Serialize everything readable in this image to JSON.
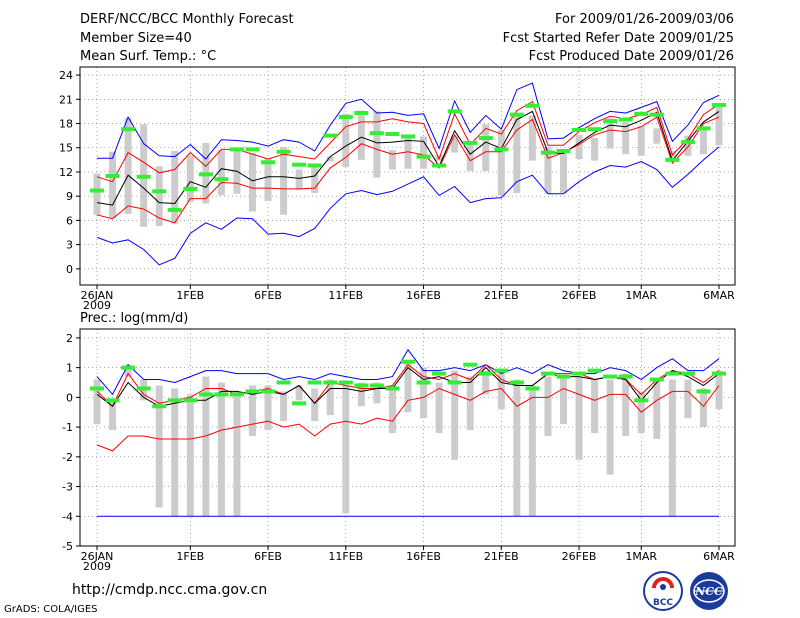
{
  "header": {
    "title": "DERF/NCC/BCC Monthly Forecast",
    "member_size": "Member Size=40",
    "variable1": "Mean Surf. Temp.: °C",
    "period": "For 2009/01/26-2009/03/06",
    "fcst_started": "Fcst Started Refer Date 2009/01/25",
    "fcst_produced": "Fcst Produced Date 2009/01/26",
    "variable2": "Prec.: log(mm/d)"
  },
  "footer": {
    "url": "http://cmdp.ncc.cma.gov.cn",
    "grads_label": "GrADS: COLA/IGES",
    "logo_left_text": "BCC",
    "logo_right_text": "NCC"
  },
  "colors": {
    "max_min_line": "#0000ff",
    "spread_line": "#ff0000",
    "mean_line": "#000000",
    "observation_bar": "#cccccc",
    "observation_mark": "#33ee33"
  },
  "chart_data": [
    {
      "type": "line",
      "title": "Mean Surf. Temp.: °C",
      "xlabel": "",
      "ylabel": "",
      "ylim": [
        -2,
        25
      ],
      "yticks": [
        0,
        3,
        6,
        9,
        12,
        15,
        18,
        21,
        24
      ],
      "grid": true,
      "x_days": 40,
      "xtick_days": [
        0,
        6,
        11,
        16,
        21,
        26,
        31,
        35,
        40
      ],
      "xtick_labels": [
        "26JAN",
        "1FEB",
        "6FEB",
        "11FEB",
        "16FEB",
        "21FEB",
        "26FEB",
        "1MAR",
        "6MAR"
      ],
      "xtick_year": "2009",
      "series": [
        {
          "name": "max",
          "color": "#0000ff",
          "values": [
            13.7,
            13.7,
            18.8,
            15.5,
            14,
            13.9,
            15.4,
            13.6,
            16,
            15.9,
            15.7,
            15.2,
            16,
            15.7,
            14.6,
            17.8,
            20.5,
            21,
            19.3,
            19.4,
            19,
            19.2,
            14.9,
            20.8,
            16.9,
            19,
            17.3,
            22.2,
            23,
            16.1,
            16.2,
            17.5,
            18.6,
            19.5,
            19.3,
            20,
            20.7,
            15.8,
            17.8,
            20.6,
            21.5
          ]
        },
        {
          "name": "upper",
          "color": "#ff0000",
          "values": [
            11.4,
            10.8,
            14.4,
            13.2,
            11.9,
            12.3,
            14.4,
            12.7,
            14.8,
            14.8,
            14.2,
            13.6,
            14.2,
            13.9,
            13.6,
            15.6,
            17.6,
            18.2,
            18.2,
            18.6,
            18.2,
            18,
            13.6,
            19.2,
            15.4,
            17.4,
            16.7,
            19.6,
            20.7,
            15.3,
            15.3,
            17,
            18.1,
            18.9,
            18.6,
            19.1,
            20,
            14.1,
            16.1,
            19.1,
            20.4
          ]
        },
        {
          "name": "mean",
          "color": "#000000",
          "values": [
            8.2,
            7.9,
            11.6,
            10,
            8.2,
            8.1,
            10.8,
            10.1,
            12.4,
            12.1,
            10.9,
            11.4,
            11.4,
            11.2,
            11.5,
            13.9,
            15.2,
            16.3,
            15.6,
            15.7,
            15.9,
            15.8,
            12.7,
            17.1,
            14.2,
            15.7,
            14.9,
            18.5,
            19.5,
            14.4,
            14.3,
            15.6,
            16.9,
            17.8,
            17.6,
            18.4,
            19.4,
            13.4,
            15.8,
            18.2,
            19.5
          ]
        },
        {
          "name": "lower",
          "color": "#ff0000",
          "values": [
            6.7,
            6.2,
            7.8,
            7.4,
            6.3,
            5.7,
            8.7,
            8.7,
            10.7,
            10.6,
            10,
            10,
            9.9,
            9.9,
            10,
            12.5,
            13.8,
            15.5,
            14.8,
            14.2,
            14.5,
            14.1,
            12.5,
            16.6,
            13.4,
            14.5,
            14.5,
            17.2,
            18.5,
            13.7,
            14.4,
            15.4,
            16.6,
            17.2,
            17,
            17.6,
            18.8,
            13.1,
            15.1,
            18,
            18.8
          ]
        },
        {
          "name": "min",
          "color": "#0000ff",
          "values": [
            3.9,
            3.2,
            3.6,
            2.4,
            0.5,
            1.3,
            4.4,
            5.7,
            4.9,
            6.3,
            6.2,
            4.3,
            4.4,
            4,
            5,
            7.5,
            9.3,
            9.7,
            9.2,
            9.6,
            10.5,
            11.4,
            9.1,
            10.2,
            8.2,
            8.7,
            8.8,
            10.8,
            11.6,
            9.3,
            9.3,
            10.8,
            12,
            12.8,
            12.6,
            13.3,
            12.3,
            10.1,
            11.7,
            13.5,
            15.1
          ]
        },
        {
          "name": "obs_bar_top",
          "color": "#cccccc",
          "values": [
            11.8,
            14.5,
            18.7,
            17.9,
            12.7,
            14.6,
            14,
            15.6,
            14.7,
            14.8,
            14.4,
            13.7,
            15.1,
            12.3,
            12.7,
            13.9,
            19.2,
            19.6,
            19.5,
            14.7,
            16.3,
            16.4,
            14.1,
            16.4,
            15.5,
            17.9,
            17.2,
            19.3,
            19,
            15.1,
            14.5,
            16.6,
            16.2,
            18.6,
            18.2,
            17.7,
            17.4,
            14.6,
            16.5,
            17.5,
            20.2
          ]
        },
        {
          "name": "obs_bar_bottom",
          "color": "#cccccc",
          "values": [
            6.7,
            6.3,
            6.8,
            5.2,
            5.3,
            5.6,
            8.3,
            8.1,
            9.1,
            9.3,
            7.1,
            8.4,
            6.7,
            9.8,
            9.4,
            13.3,
            12.6,
            13.5,
            11.3,
            12.3,
            12.4,
            12.4,
            13.4,
            14.4,
            12.1,
            12.1,
            9.1,
            9.4,
            13.4,
            9.3,
            9.4,
            13.6,
            13.4,
            14.9,
            14.2,
            14,
            15.5,
            13.6,
            14,
            14.2,
            15.3
          ]
        },
        {
          "name": "observed",
          "color": "#33ee33",
          "values": [
            9.7,
            11.5,
            17.3,
            11.4,
            9.6,
            7.3,
            9.9,
            11.7,
            11.1,
            14.8,
            14.8,
            13.2,
            14.5,
            12.9,
            12.8,
            16.5,
            18.8,
            19.3,
            16.8,
            16.7,
            16.4,
            13.9,
            12.8,
            19.5,
            15.6,
            16.2,
            14.8,
            19.1,
            20.2,
            14.4,
            14.6,
            17.2,
            17.3,
            18.3,
            18.5,
            19.2,
            19.1,
            13.5,
            15.7,
            17.4,
            20.3
          ]
        }
      ]
    },
    {
      "type": "line",
      "title": "Prec.: log(mm/d)",
      "xlabel": "",
      "ylabel": "",
      "ylim": [
        -5,
        2.3
      ],
      "yticks": [
        -5,
        -4,
        -3,
        -2,
        -1,
        0,
        1,
        2
      ],
      "grid": true,
      "x_days": 40,
      "xtick_days": [
        0,
        6,
        11,
        16,
        21,
        26,
        31,
        35,
        40
      ],
      "xtick_labels": [
        "26JAN",
        "1FEB",
        "6FEB",
        "11FEB",
        "16FEB",
        "21FEB",
        "26FEB",
        "1MAR",
        "6MAR"
      ],
      "xtick_year": "2009",
      "series": [
        {
          "name": "max",
          "color": "#0000ff",
          "values": [
            0.7,
            0.1,
            1.1,
            0.6,
            0.6,
            0.5,
            0.7,
            0.9,
            0.9,
            0.8,
            0.8,
            0.8,
            0.6,
            0.7,
            0.6,
            0.8,
            0.7,
            0.6,
            0.6,
            0.7,
            1.6,
            0.9,
            0.9,
            1,
            0.9,
            1.1,
            0.8,
            1,
            0.8,
            1.1,
            0.9,
            0.8,
            0.8,
            1,
            0.9,
            0.6,
            1,
            1.3,
            0.9,
            0.9,
            1.3
          ]
        },
        {
          "name": "upper",
          "color": "#ff0000",
          "values": [
            0.2,
            -0.3,
            0.8,
            0.1,
            -0.2,
            -0.1,
            0,
            0.3,
            0.3,
            0.1,
            0.2,
            0.3,
            0.1,
            0.4,
            -0.2,
            0.5,
            0.4,
            0.3,
            0.3,
            0.4,
            1.1,
            0.7,
            0.6,
            0.8,
            0.6,
            1.1,
            0.6,
            0.4,
            0.4,
            0.8,
            0.8,
            0.8,
            0.6,
            0.7,
            0.6,
            0.1,
            0.6,
            0.9,
            0.8,
            0.5,
            0.9
          ]
        },
        {
          "name": "mean",
          "color": "#000000",
          "values": [
            0.1,
            -0.3,
            0.5,
            0,
            -0.3,
            -0.2,
            -0.1,
            -0.1,
            0.2,
            0.2,
            0.1,
            0.2,
            0.1,
            0.4,
            -0.2,
            0.3,
            0.3,
            0.2,
            0.3,
            0.3,
            1,
            0.6,
            0.7,
            0.5,
            0.5,
            1,
            0.5,
            0.4,
            0.4,
            0.8,
            0.7,
            0.7,
            0.6,
            0.7,
            0.6,
            -0.1,
            0.5,
            0.9,
            0.7,
            0.4,
            0.8
          ]
        },
        {
          "name": "lower",
          "color": "#ff0000",
          "values": [
            -1.6,
            -1.8,
            -1.3,
            -1.3,
            -1.4,
            -1.4,
            -1.4,
            -1.3,
            -1.1,
            -1,
            -0.9,
            -0.8,
            -1,
            -0.9,
            -1.3,
            -0.9,
            -0.8,
            -0.9,
            -0.7,
            -0.8,
            -0.1,
            0,
            0.3,
            0.1,
            -0.1,
            0.2,
            0.3,
            -0.3,
            0,
            0,
            0.3,
            0.1,
            -0.1,
            0.1,
            0.1,
            -0.5,
            -0.1,
            0.2,
            0.2,
            -0.3,
            0.4
          ]
        },
        {
          "name": "min",
          "color": "#0000ff",
          "values": [
            -4,
            -4,
            -4,
            -4,
            -4,
            -4,
            -4,
            -4,
            -4,
            -4,
            -4,
            -4,
            -4,
            -4,
            -4,
            -4,
            -4,
            -4,
            -4,
            -4,
            -4,
            -4,
            -4,
            -4,
            -4,
            -4,
            -4,
            -4,
            -4,
            -4,
            -4,
            -4,
            -4,
            -4,
            -4,
            -4,
            -4,
            -4,
            -4,
            -4,
            -4
          ]
        },
        {
          "name": "obs_bar_top",
          "color": "#cccccc",
          "values": [
            0.6,
            -0.1,
            1.1,
            0.6,
            0.4,
            0.3,
            0.1,
            0.7,
            0.5,
            0.2,
            0.4,
            0.4,
            0.2,
            0.4,
            0.3,
            0.6,
            0.4,
            0.5,
            0.5,
            0.4,
            1.2,
            1,
            0.5,
            0.9,
            0.7,
            0.9,
            0.9,
            0.6,
            0.4,
            0.7,
            0.7,
            0.7,
            0.6,
            0.6,
            0.8,
            0.2,
            0.6,
            0.6,
            0.6,
            0.3,
            0.9
          ]
        },
        {
          "name": "obs_bar_bottom",
          "color": "#cccccc",
          "values": [
            -0.9,
            -1.1,
            0.7,
            -0.1,
            -3.7,
            -4,
            -4,
            -4,
            -4,
            -4,
            -1.3,
            -1.1,
            -0.8,
            -0.1,
            -0.8,
            -0.6,
            -3.9,
            -0.3,
            -0.2,
            -1.2,
            -0.5,
            -0.7,
            -1.2,
            -2.1,
            -1.1,
            0.1,
            -0.4,
            -4,
            -4,
            -1.3,
            -0.9,
            -2.1,
            -1.2,
            -2.6,
            -1.3,
            -1.2,
            -1.4,
            -4,
            -0.7,
            -1,
            -0.4
          ]
        },
        {
          "name": "observed",
          "color": "#33ee33",
          "values": [
            0.3,
            -0.1,
            1,
            0.3,
            -0.3,
            -0.1,
            -0.1,
            0.1,
            0.1,
            0.1,
            0.2,
            0.2,
            0.5,
            -0.2,
            0.5,
            0.5,
            0.5,
            0.4,
            0.4,
            0.3,
            1.2,
            0.5,
            0.8,
            0.5,
            1.1,
            0.8,
            0.9,
            0.5,
            0.3,
            0.8,
            0.7,
            0.8,
            0.9,
            0.7,
            0.7,
            -0.1,
            0.6,
            0.8,
            0.8,
            0.2,
            0.8
          ]
        }
      ]
    }
  ]
}
